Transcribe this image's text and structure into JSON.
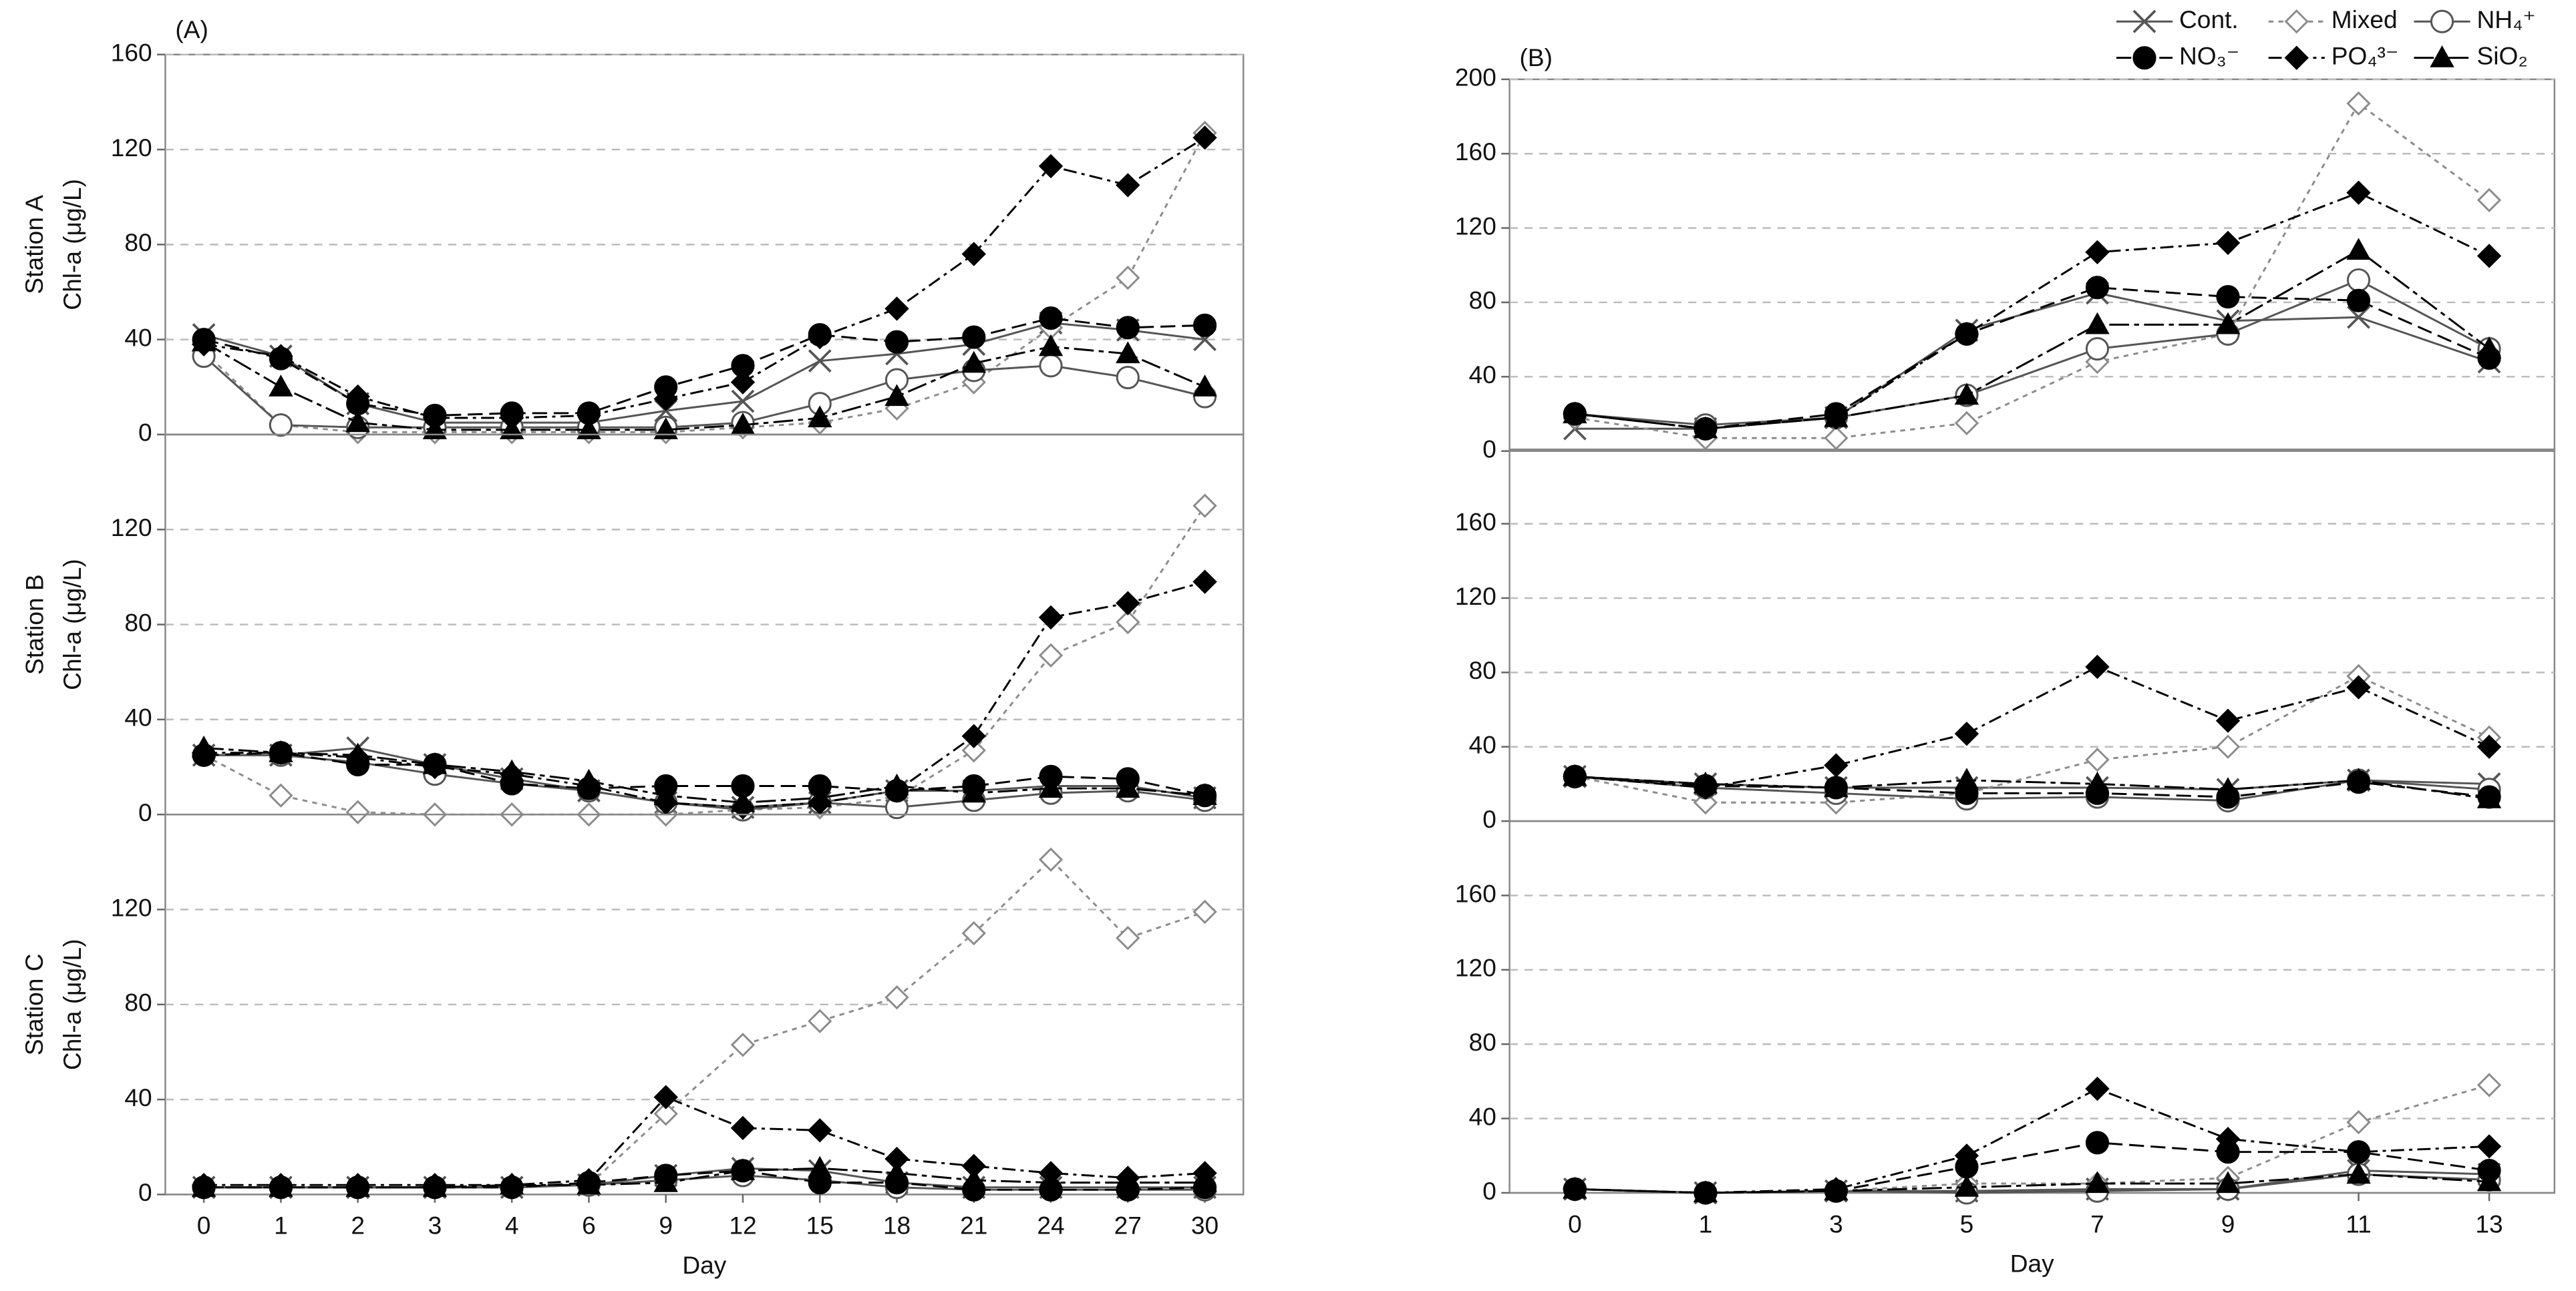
{
  "chart_data": [
    {
      "type": "line",
      "title": "(A)",
      "ylabel": [
        "Station A",
        "Chl-a (μg/L)"
      ],
      "ylim": [
        0,
        160
      ],
      "yticks": [
        0,
        40,
        80,
        120,
        160
      ],
      "grid": true,
      "series": [
        {
          "values": [
            42,
            33,
            13,
            5,
            5,
            5,
            10,
            14,
            31,
            34,
            38,
            47,
            44,
            40
          ]
        },
        {
          "values": [
            35,
            4,
            1,
            1,
            1,
            1,
            1,
            3,
            5,
            11,
            22,
            45,
            66,
            127
          ]
        },
        {
          "values": [
            33,
            4,
            3,
            3,
            3,
            3,
            3,
            5,
            13,
            23,
            27,
            29,
            24,
            16
          ]
        },
        {
          "values": [
            40,
            32,
            13,
            8,
            9,
            9,
            20,
            29,
            42,
            39,
            41,
            49,
            45,
            46
          ]
        },
        {
          "values": [
            38,
            33,
            16,
            7,
            7,
            8,
            15,
            22,
            41,
            53,
            76,
            113,
            105,
            125
          ]
        },
        {
          "values": [
            39,
            20,
            5,
            2,
            2,
            2,
            2,
            4,
            7,
            16,
            30,
            37,
            34,
            20
          ]
        }
      ]
    },
    {
      "type": "line",
      "ylabel": [
        "Station B",
        "Chl-a (μg/L)"
      ],
      "ylim": [
        0,
        160
      ],
      "yticks": [
        0,
        40,
        80,
        120
      ],
      "grid": true,
      "series": [
        {
          "values": [
            25,
            25,
            28,
            21,
            15,
            10,
            5,
            3,
            5,
            10,
            10,
            12,
            12,
            7
          ]
        },
        {
          "values": [
            25,
            8,
            1,
            0,
            0,
            0,
            0,
            2,
            3,
            7,
            27,
            67,
            81,
            130
          ]
        },
        {
          "values": [
            25,
            25,
            22,
            17,
            13,
            10,
            5,
            2,
            5,
            3,
            6,
            9,
            10,
            6
          ]
        },
        {
          "values": [
            25,
            26,
            21,
            21,
            13,
            11,
            12,
            12,
            12,
            10,
            12,
            16,
            15,
            8
          ]
        },
        {
          "values": [
            26,
            26,
            24,
            20,
            17,
            12,
            5,
            3,
            5,
            10,
            33,
            83,
            89,
            98
          ]
        },
        {
          "values": [
            28,
            26,
            25,
            21,
            18,
            14,
            8,
            5,
            7,
            12,
            9,
            11,
            11,
            8
          ]
        }
      ]
    },
    {
      "type": "line",
      "ylabel": [
        "Station C",
        "Chl-a (μg/L)"
      ],
      "xlabel": "Day",
      "ylim": [
        0,
        160
      ],
      "yticks": [
        0,
        40,
        80,
        120
      ],
      "grid": true,
      "categories": [
        "0",
        "1",
        "2",
        "3",
        "4",
        "6",
        "9",
        "12",
        "15",
        "18",
        "21",
        "24",
        "27",
        "30"
      ],
      "series": [
        {
          "values": [
            3,
            3,
            3,
            3,
            3,
            4,
            8,
            11,
            10,
            5,
            3,
            3,
            3,
            3
          ]
        },
        {
          "values": [
            3,
            3,
            3,
            3,
            3,
            4,
            34,
            63,
            73,
            83,
            110,
            141,
            108,
            119
          ]
        },
        {
          "values": [
            3,
            3,
            3,
            3,
            3,
            4,
            6,
            8,
            6,
            3,
            2,
            2,
            2,
            2
          ]
        },
        {
          "values": [
            3,
            3,
            3,
            3,
            3,
            5,
            8,
            10,
            5,
            5,
            2,
            2,
            2,
            3
          ]
        },
        {
          "values": [
            4,
            4,
            4,
            4,
            4,
            6,
            41,
            28,
            27,
            15,
            12,
            9,
            7,
            9
          ]
        },
        {
          "values": [
            3,
            3,
            3,
            3,
            4,
            4,
            5,
            10,
            11,
            9,
            6,
            5,
            5,
            5
          ]
        }
      ]
    },
    {
      "type": "line",
      "title": "(B)",
      "ylim": [
        0,
        200
      ],
      "yticks": [
        0,
        40,
        80,
        120,
        160,
        200
      ],
      "grid": true,
      "legend": "top-right",
      "series": [
        {
          "name": "Cont.",
          "color": "#555555",
          "marker": "x",
          "line_style": "solid",
          "values": [
            12,
            12,
            18,
            65,
            85,
            70,
            72,
            48
          ]
        },
        {
          "name": "Mixed",
          "color": "#8c8c8c",
          "marker": "diamond-open",
          "line_style": "dotted",
          "values": [
            18,
            7,
            7,
            15,
            48,
            63,
            187,
            135
          ]
        },
        {
          "name": "NH₄⁺",
          "color": "#555555",
          "marker": "circle-open",
          "line_style": "solid",
          "values": [
            20,
            14,
            18,
            30,
            55,
            63,
            92,
            55
          ]
        },
        {
          "name": "NO₃⁻",
          "color": "#000000",
          "marker": "circle",
          "line_style": "dashed",
          "values": [
            20,
            12,
            20,
            63,
            88,
            83,
            81,
            50
          ]
        },
        {
          "name": "PO₄³⁻",
          "color": "#000000",
          "marker": "diamond",
          "line_style": "dashdot",
          "values": [
            20,
            12,
            18,
            63,
            107,
            112,
            139,
            105
          ]
        },
        {
          "name": "SiO₂",
          "color": "#000000",
          "marker": "triangle",
          "line_style": "longdashdot",
          "values": [
            20,
            12,
            18,
            30,
            68,
            68,
            108,
            55
          ]
        }
      ]
    },
    {
      "type": "line",
      "ylim": [
        0,
        200
      ],
      "yticks": [
        0,
        40,
        80,
        120,
        160
      ],
      "grid": true,
      "series": [
        {
          "values": [
            24,
            20,
            18,
            18,
            18,
            17,
            22,
            20
          ]
        },
        {
          "values": [
            24,
            10,
            10,
            15,
            33,
            40,
            78,
            45
          ]
        },
        {
          "values": [
            24,
            18,
            15,
            12,
            13,
            11,
            22,
            17
          ]
        },
        {
          "values": [
            24,
            19,
            18,
            15,
            15,
            13,
            21,
            13
          ]
        },
        {
          "values": [
            24,
            18,
            30,
            47,
            83,
            54,
            72,
            40
          ]
        },
        {
          "values": [
            24,
            20,
            18,
            22,
            20,
            17,
            22,
            12
          ]
        }
      ]
    },
    {
      "type": "line",
      "xlabel": "Day",
      "ylim": [
        0,
        200
      ],
      "yticks": [
        0,
        40,
        80,
        120,
        160
      ],
      "grid": true,
      "categories": [
        "0",
        "1",
        "3",
        "5",
        "7",
        "9",
        "11",
        "13"
      ],
      "series": [
        {
          "values": [
            2,
            0,
            1,
            1,
            2,
            2,
            12,
            10
          ]
        },
        {
          "values": [
            2,
            0,
            1,
            5,
            5,
            8,
            38,
            58
          ]
        },
        {
          "values": [
            2,
            0,
            1,
            0,
            1,
            2,
            10,
            7
          ]
        },
        {
          "values": [
            2,
            0,
            1,
            14,
            27,
            22,
            22,
            12
          ]
        },
        {
          "values": [
            2,
            0,
            2,
            20,
            56,
            29,
            22,
            25
          ]
        },
        {
          "values": [
            2,
            0,
            1,
            3,
            5,
            5,
            10,
            6
          ]
        }
      ]
    }
  ]
}
